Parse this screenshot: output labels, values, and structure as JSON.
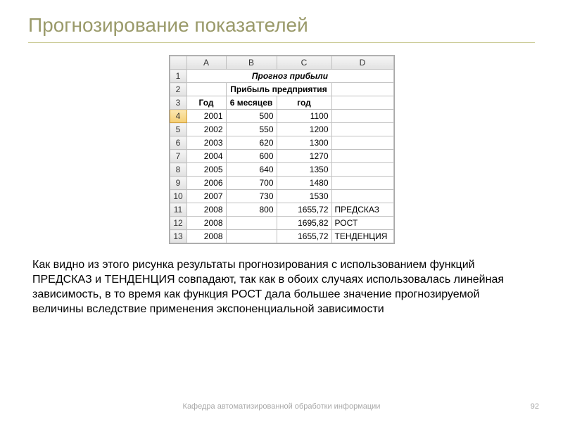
{
  "title": "Прогнозирование  показателей",
  "sheet": {
    "col_headers": [
      "A",
      "B",
      "C",
      "D"
    ],
    "row_nums": [
      "1",
      "2",
      "3",
      "4",
      "5",
      "6",
      "7",
      "8",
      "9",
      "10",
      "11",
      "12",
      "13"
    ],
    "merged_title": "Прогноз прибыли",
    "header2_b_c": "Прибыль предприятия",
    "header3_a": "Год",
    "header3_b": "6 месяцев",
    "header3_c": "год",
    "rows": [
      {
        "a": "2001",
        "b": "500",
        "c": "1100",
        "d": ""
      },
      {
        "a": "2002",
        "b": "550",
        "c": "1200",
        "d": ""
      },
      {
        "a": "2003",
        "b": "620",
        "c": "1300",
        "d": ""
      },
      {
        "a": "2004",
        "b": "600",
        "c": "1270",
        "d": ""
      },
      {
        "a": "2005",
        "b": "640",
        "c": "1350",
        "d": ""
      },
      {
        "a": "2006",
        "b": "700",
        "c": "1480",
        "d": ""
      },
      {
        "a": "2007",
        "b": "730",
        "c": "1530",
        "d": ""
      },
      {
        "a": "2008",
        "b": "800",
        "c": "1655,72",
        "d": "ПРЕДСКАЗ"
      },
      {
        "a": "2008",
        "b": "",
        "c": "1695,82",
        "d": "РОСТ"
      },
      {
        "a": "2008",
        "b": "",
        "c": "1655,72",
        "d": "ТЕНДЕНЦИЯ"
      }
    ]
  },
  "body_text": "Как видно из этого рисунка результаты прогнозирования с использованием функций ПРЕДСКАЗ и ТЕНДЕНЦИЯ совпадают, так как в обоих случаях использовалась линейная зависимость, в то время как функция РОСТ дала большее значение прогнозируемой величины вследствие применения экспоненциальной зависимости",
  "footer": "Кафедра автоматизированной обработки информации",
  "page": "92"
}
